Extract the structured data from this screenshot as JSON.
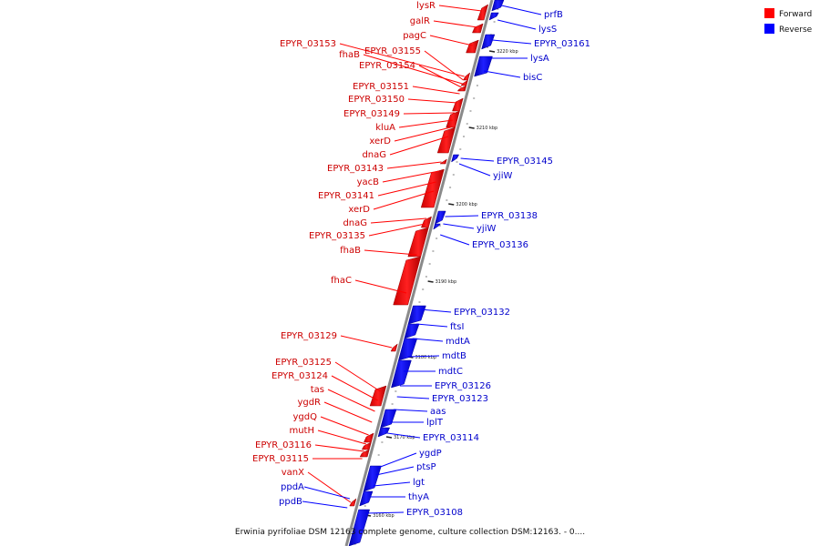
{
  "caption": "Erwinia pyrifoliae DSM 12163 complete genome, culture collection DSM:12163. - 0....",
  "legend": [
    {
      "label": "Forward",
      "color": "#ff0000"
    },
    {
      "label": "Reverse",
      "color": "#0000ff"
    }
  ],
  "colors": {
    "forward": "#ff0000",
    "reverse": "#0000ff",
    "axis": "#777777",
    "tick": "#222222"
  },
  "ticks": [
    "3220 kbp",
    "3210 kbp",
    "3200 kbp",
    "3190 kbp",
    "3180 kbp",
    "3170 kbp",
    "3160 kbp"
  ],
  "forward_labels": [
    "lysR",
    "galR",
    "pagC",
    "EPYR_03153",
    "EPYR_03155",
    "fhaB",
    "EPYR_03154",
    "EPYR_03151",
    "EPYR_03150",
    "EPYR_03149",
    "kluA",
    "xerD",
    "dnaG",
    "EPYR_03143",
    "yacB",
    "EPYR_03141",
    "xerD",
    "dnaG",
    "EPYR_03135",
    "fhaB",
    "fhaC",
    "EPYR_03129",
    "EPYR_03125",
    "EPYR_03124",
    "tas",
    "ygdR",
    "ygdQ",
    "mutH",
    "EPYR_03116",
    "EPYR_03115",
    "vanX"
  ],
  "reverse_labels": [
    "prfB",
    "lysS",
    "EPYR_03161",
    "lysA",
    "bisC",
    "EPYR_03145",
    "yjiW",
    "EPYR_03138",
    "yjiW",
    "EPYR_03136",
    "EPYR_03132",
    "ftsI",
    "mdtA",
    "mdtB",
    "mdtC",
    "EPYR_03126",
    "EPYR_03123",
    "aas",
    "lplT",
    "EPYR_03114",
    "ygdP",
    "ptsP",
    "lgt",
    "thyA",
    "ppdA",
    "ppdB",
    "EPYR_03108"
  ]
}
